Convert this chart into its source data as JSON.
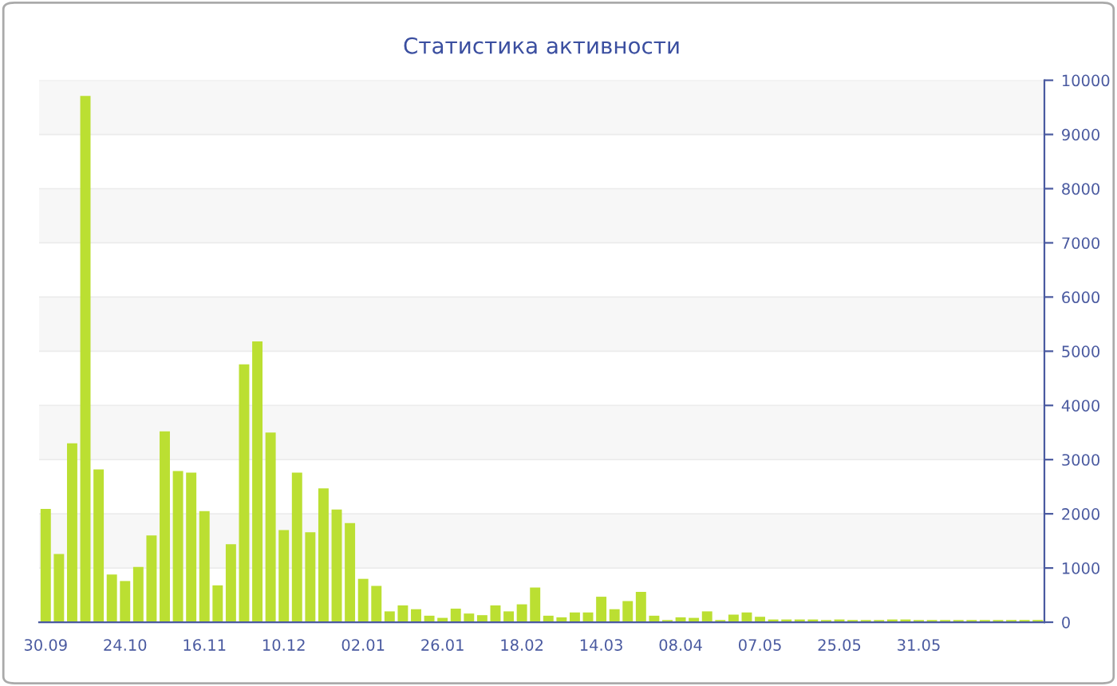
{
  "chart_data": {
    "type": "bar",
    "title": "Статистика активности",
    "categories": [
      "30.09",
      null,
      null,
      null,
      null,
      null,
      "24.10",
      null,
      null,
      null,
      null,
      null,
      "16.11",
      null,
      null,
      null,
      null,
      null,
      "10.12",
      null,
      null,
      null,
      null,
      null,
      "02.01",
      null,
      null,
      null,
      null,
      null,
      "26.01",
      null,
      null,
      null,
      null,
      null,
      "18.02",
      null,
      null,
      null,
      null,
      null,
      "14.03",
      null,
      null,
      null,
      null,
      null,
      "08.04",
      null,
      null,
      null,
      null,
      null,
      "07.05",
      null,
      null,
      null,
      null,
      null,
      "25.05",
      null,
      null,
      null,
      null,
      null,
      "31.05",
      null,
      null,
      null,
      null,
      null,
      null,
      null,
      null,
      null
    ],
    "values": [
      2090,
      1260,
      3300,
      9710,
      2820,
      880,
      760,
      1020,
      1600,
      3520,
      2790,
      2760,
      2050,
      680,
      1440,
      4760,
      5180,
      3500,
      1700,
      2760,
      1660,
      2470,
      2080,
      1830,
      800,
      670,
      200,
      310,
      240,
      120,
      80,
      250,
      160,
      130,
      310,
      200,
      330,
      640,
      120,
      90,
      180,
      180,
      470,
      240,
      390,
      560,
      120,
      40,
      90,
      80,
      200,
      40,
      140,
      180,
      100,
      50,
      50,
      50,
      50,
      40,
      50,
      40,
      40,
      40,
      50,
      50,
      40,
      40,
      40,
      40,
      40,
      40,
      40,
      40,
      40,
      40
    ],
    "color": "#bbdf32",
    "ylim": [
      0,
      10000
    ],
    "yticks": [
      0,
      1000,
      2000,
      3000,
      4000,
      5000,
      6000,
      7000,
      8000,
      9000,
      10000
    ],
    "grid": "y",
    "legend": false
  }
}
